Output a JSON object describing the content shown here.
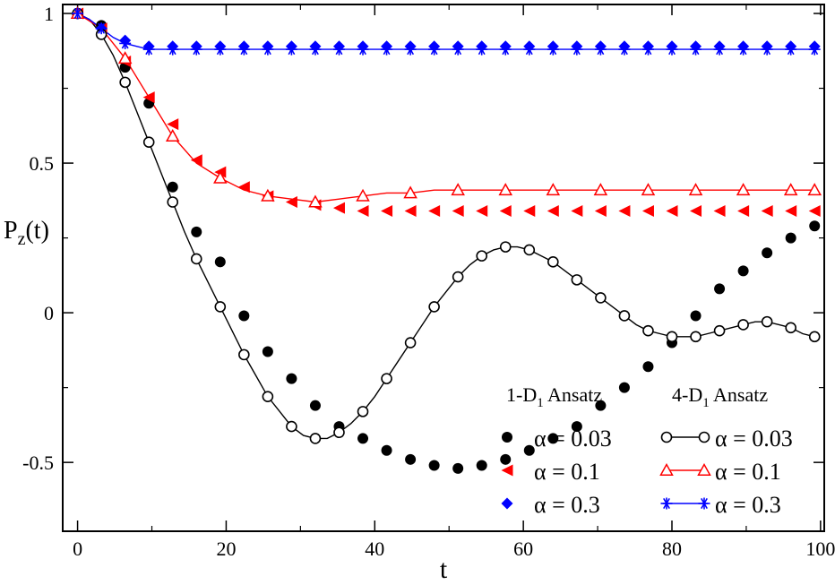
{
  "chart_data": {
    "type": "scatter",
    "title": "",
    "xlabel": "t",
    "ylabel": "P",
    "ylabel_sub": "z",
    "ylabel_suffix": "(t)",
    "xlim": [
      -2,
      100.5
    ],
    "ylim": [
      -0.73,
      1.03
    ],
    "xticks": [
      0,
      20,
      40,
      60,
      80,
      100
    ],
    "xtick_labels": [
      "0",
      "20",
      "40",
      "60",
      "80",
      "100"
    ],
    "yticks": [
      1,
      0.5,
      0,
      -0.5
    ],
    "ytick_labels": [
      "1",
      "0.5",
      "0",
      "-0.5"
    ],
    "legend_headers": [
      {
        "pre": "1-D",
        "sub": "1",
        "post": " Ansatz"
      },
      {
        "pre": "4-D",
        "sub": "1",
        "post": " Ansatz"
      }
    ],
    "colors": {
      "black": "#000000",
      "red": "#ff0000",
      "blue": "#0000ff"
    },
    "series": [
      {
        "name": "α = 0.03",
        "group": "1-D1 Ansatz",
        "marker": "filled-circle",
        "color": "#000000",
        "line": false,
        "x": [
          0,
          3.2,
          6.4,
          9.6,
          12.8,
          16,
          19.2,
          22.4,
          25.6,
          28.8,
          32,
          35.2,
          38.4,
          41.6,
          44.8,
          48,
          51.2,
          54.4,
          57.6,
          60.8,
          64,
          67.2,
          70.4,
          73.6,
          76.8,
          80,
          83.2,
          86.4,
          89.6,
          92.8,
          96,
          99.2
        ],
        "values": [
          1,
          0.96,
          0.82,
          0.7,
          0.42,
          0.27,
          0.17,
          -0.01,
          -0.13,
          -0.22,
          -0.31,
          -0.38,
          -0.42,
          -0.46,
          -0.49,
          -0.51,
          -0.52,
          -0.51,
          -0.49,
          -0.46,
          -0.42,
          -0.38,
          -0.31,
          -0.25,
          -0.18,
          -0.1,
          -0.01,
          0.08,
          0.14,
          0.2,
          0.25,
          0.29
        ]
      },
      {
        "name": "α = 0.1",
        "group": "1-D1 Ansatz",
        "marker": "filled-triangle-left",
        "color": "#ff0000",
        "line": false,
        "x": [
          0,
          3.2,
          6.4,
          9.6,
          12.8,
          16,
          19.2,
          22.4,
          25.6,
          28.8,
          32,
          35.2,
          38.4,
          41.6,
          44.8,
          48,
          51.2,
          54.4,
          57.6,
          60.8,
          64,
          67.2,
          70.4,
          73.6,
          76.8,
          80,
          83.2,
          86.4,
          89.6,
          92.8,
          96,
          99.2
        ],
        "values": [
          1,
          0.95,
          0.84,
          0.72,
          0.63,
          0.51,
          0.47,
          0.42,
          0.39,
          0.37,
          0.36,
          0.35,
          0.34,
          0.34,
          0.34,
          0.34,
          0.34,
          0.34,
          0.34,
          0.34,
          0.34,
          0.34,
          0.34,
          0.34,
          0.34,
          0.34,
          0.34,
          0.34,
          0.34,
          0.34,
          0.34,
          0.34
        ]
      },
      {
        "name": "α = 0.3",
        "group": "1-D1 Ansatz",
        "marker": "filled-diamond",
        "color": "#0000ff",
        "line": false,
        "x": [
          0,
          3.2,
          6.4,
          9.6,
          12.8,
          16,
          19.2,
          22.4,
          25.6,
          28.8,
          32,
          35.2,
          38.4,
          41.6,
          44.8,
          48,
          51.2,
          54.4,
          57.6,
          60.8,
          64,
          67.2,
          70.4,
          73.6,
          76.8,
          80,
          83.2,
          86.4,
          89.6,
          92.8,
          96,
          99.2
        ],
        "values": [
          1,
          0.95,
          0.91,
          0.89,
          0.89,
          0.89,
          0.89,
          0.89,
          0.89,
          0.89,
          0.89,
          0.89,
          0.89,
          0.89,
          0.89,
          0.89,
          0.89,
          0.89,
          0.89,
          0.89,
          0.89,
          0.89,
          0.89,
          0.89,
          0.89,
          0.89,
          0.89,
          0.89,
          0.89,
          0.89,
          0.89,
          0.89
        ]
      },
      {
        "name": "α = 0.03",
        "group": "4-D1 Ansatz",
        "marker": "open-circle",
        "color": "#000000",
        "line": true,
        "x": [
          0,
          1.6,
          3.2,
          4.8,
          6.4,
          8,
          9.6,
          11.2,
          12.8,
          14.4,
          16,
          17.6,
          19.2,
          20.8,
          22.4,
          24,
          25.6,
          27.2,
          28.8,
          30.4,
          32,
          33.6,
          35.2,
          36.8,
          38.4,
          40,
          41.6,
          43.2,
          44.8,
          46.4,
          48,
          49.6,
          51.2,
          52.8,
          54.4,
          56,
          57.6,
          59.2,
          60.8,
          62.4,
          64,
          65.6,
          67.2,
          68.8,
          70.4,
          72,
          73.6,
          75.2,
          76.8,
          78.4,
          80,
          81.6,
          83.2,
          84.8,
          86.4,
          88,
          89.6,
          91.2,
          92.8,
          94.4,
          96,
          97.6,
          99.2
        ],
        "values": [
          1,
          0.98,
          0.93,
          0.86,
          0.77,
          0.67,
          0.57,
          0.47,
          0.37,
          0.27,
          0.18,
          0.1,
          0.02,
          -0.06,
          -0.14,
          -0.21,
          -0.28,
          -0.33,
          -0.38,
          -0.41,
          -0.42,
          -0.42,
          -0.4,
          -0.37,
          -0.33,
          -0.28,
          -0.22,
          -0.16,
          -0.1,
          -0.04,
          0.02,
          0.07,
          0.12,
          0.16,
          0.19,
          0.21,
          0.22,
          0.22,
          0.21,
          0.19,
          0.17,
          0.14,
          0.11,
          0.08,
          0.05,
          0.02,
          -0.01,
          -0.04,
          -0.06,
          -0.07,
          -0.08,
          -0.08,
          -0.08,
          -0.07,
          -0.06,
          -0.05,
          -0.04,
          -0.03,
          -0.03,
          -0.04,
          -0.05,
          -0.07,
          -0.08
        ]
      },
      {
        "name": "α = 0.1",
        "group": "4-D1 Ansatz",
        "marker": "open-triangle-up",
        "color": "#ff0000",
        "line": true,
        "x": [
          0,
          3.2,
          6.4,
          9.6,
          12.8,
          16,
          19.2,
          22.4,
          25.6,
          28.8,
          32,
          35.2,
          38.4,
          41.6,
          44.8,
          48,
          51.2,
          54.4,
          57.6,
          60.8,
          64,
          67.2,
          70.4,
          73.6,
          76.8,
          80,
          83.2,
          86.4,
          89.6,
          92.8,
          96,
          99.2
        ],
        "values": [
          1,
          0.95,
          0.85,
          0.72,
          0.59,
          0.5,
          0.45,
          0.41,
          0.39,
          0.38,
          0.37,
          0.38,
          0.39,
          0.4,
          0.4,
          0.41,
          0.41,
          0.41,
          0.41,
          0.41,
          0.41,
          0.41,
          0.41,
          0.41,
          0.41,
          0.41,
          0.41,
          0.41,
          0.41,
          0.41,
          0.41,
          0.41
        ]
      },
      {
        "name": "α = 0.3",
        "group": "4-D1 Ansatz",
        "marker": "asterisk",
        "color": "#0000ff",
        "line": true,
        "x": [
          0,
          1.6,
          3.2,
          4.8,
          6.4,
          8,
          9.6,
          11.2,
          12.8,
          14.4,
          16,
          17.6,
          19.2,
          20.8,
          22.4,
          24,
          25.6,
          27.2,
          28.8,
          30.4,
          32,
          33.6,
          35.2,
          36.8,
          38.4,
          40,
          41.6,
          43.2,
          44.8,
          46.4,
          48,
          49.6,
          51.2,
          52.8,
          54.4,
          56,
          57.6,
          59.2,
          60.8,
          62.4,
          64,
          65.6,
          67.2,
          68.8,
          70.4,
          72,
          73.6,
          75.2,
          76.8,
          78.4,
          80,
          81.6,
          83.2,
          84.8,
          86.4,
          88,
          89.6,
          91.2,
          92.8,
          94.4,
          96,
          97.6,
          99.2
        ],
        "values": [
          1,
          0.98,
          0.95,
          0.92,
          0.9,
          0.89,
          0.88,
          0.88,
          0.88,
          0.88,
          0.88,
          0.88,
          0.88,
          0.88,
          0.88,
          0.88,
          0.88,
          0.88,
          0.88,
          0.88,
          0.88,
          0.88,
          0.88,
          0.88,
          0.88,
          0.88,
          0.88,
          0.88,
          0.88,
          0.88,
          0.88,
          0.88,
          0.88,
          0.88,
          0.88,
          0.88,
          0.88,
          0.88,
          0.88,
          0.88,
          0.88,
          0.88,
          0.88,
          0.88,
          0.88,
          0.88,
          0.88,
          0.88,
          0.88,
          0.88,
          0.88,
          0.88,
          0.88,
          0.88,
          0.88,
          0.88,
          0.88,
          0.88,
          0.88,
          0.88,
          0.88,
          0.88,
          0.88
        ]
      }
    ]
  }
}
